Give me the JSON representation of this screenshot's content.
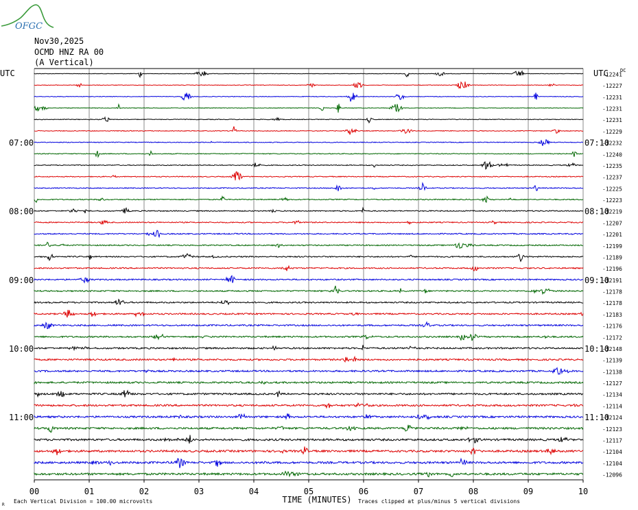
{
  "logo": {
    "text": "OFGC",
    "color": "#2a6fb0",
    "wave_color": "#3a9a3a"
  },
  "header": {
    "date": "Nov30,2025",
    "station": "OCMD HNZ RA 00",
    "component": "(A Vertical)"
  },
  "chart_data": {
    "type": "line",
    "subtype": "helicorder",
    "title": "",
    "xlabel": "TIME (MINUTES)",
    "x_ticks": [
      "00",
      "01",
      "02",
      "03",
      "04",
      "05",
      "06",
      "07",
      "08",
      "09",
      "10"
    ],
    "xlim": [
      0,
      10
    ],
    "left_axis_title": "UTC",
    "right_axis_title": "UTC",
    "dc_label": "DC",
    "left_time_labels": [
      {
        "row": 6,
        "text": "07:00"
      },
      {
        "row": 12,
        "text": "08:00"
      },
      {
        "row": 18,
        "text": "09:00"
      },
      {
        "row": 24,
        "text": "10:00"
      },
      {
        "row": 30,
        "text": "11:00"
      }
    ],
    "right_time_labels": [
      {
        "row": 6,
        "text": "07:10"
      },
      {
        "row": 12,
        "text": "08:10"
      },
      {
        "row": 18,
        "text": "09:10"
      },
      {
        "row": 24,
        "text": "10:10"
      },
      {
        "row": 30,
        "text": "11:10"
      }
    ],
    "trace_colors": [
      "#000000",
      "#dd0000",
      "#0000dd",
      "#006600"
    ],
    "dc_offsets": [
      "-12241",
      "-12227",
      "-12231",
      "-12231",
      "-12231",
      "-12229",
      "-12232",
      "-12240",
      "-12235",
      "-12237",
      "-12225",
      "-12223",
      "-12219",
      "-12207",
      "-12201",
      "-12199",
      "-12189",
      "-12196",
      "-12191",
      "-12178",
      "-12178",
      "-12183",
      "-12176",
      "-12172",
      "-12148",
      "-12139",
      "-12138",
      "-12127",
      "-12134",
      "-12114",
      "-12124",
      "-12123",
      "-12117",
      "-12104",
      "-12104",
      "-12096"
    ],
    "footer_left": "Each Vertical Division =  100.00 microvolts",
    "footer_right": "Traces clipped at plus/minus 5 vertical divisions",
    "footer_corner": "R"
  }
}
